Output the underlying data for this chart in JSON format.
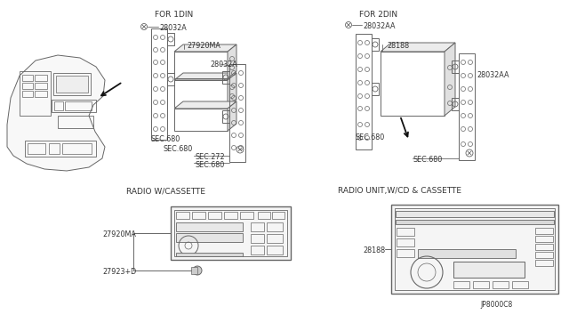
{
  "bg_color": "#ffffff",
  "line_color": "#666666",
  "labels": {
    "for1din": "FOR 1DIN",
    "for2din": "FOR 2DIN",
    "radio_cassette": "RADIO W/CASSETTE",
    "radio_cd": "RADIO UNIT,W/CD & CASSETTE",
    "screw1_label": "28032A",
    "bracket1_label": "27920MA",
    "rbracket1_label": "28032A",
    "sec680_a": "SEC.680",
    "sec680_b": "SEC.680",
    "sec272": "SEC.272",
    "sec680_c": "SEC.680",
    "screw2_label": "28032AA",
    "box2_label": "28188",
    "rbracket2_label": "28032AA",
    "sec680_d": "SEC.680",
    "sec680_e": "SEC.680",
    "label_27920ma": "27920MA",
    "label_27923d": "27923+D",
    "label_28188": "28188",
    "label_jp": "JP8000C8"
  }
}
